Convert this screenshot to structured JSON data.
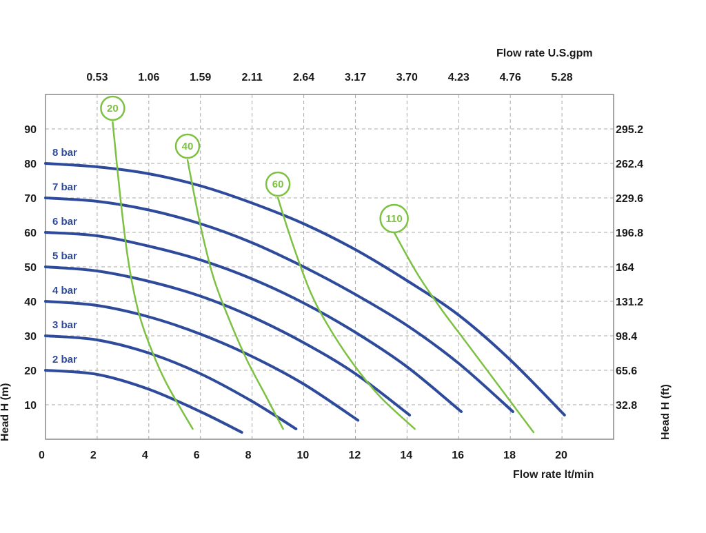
{
  "chart_data": {
    "type": "line",
    "xlabel": "Flow rate  lt/min",
    "x2label": "Flow rate U.S.gpm",
    "ylabel": "Head H (m)",
    "y2label": "Head H (ft)",
    "xlim": [
      0,
      22
    ],
    "ylim": [
      0,
      100
    ],
    "x_ticks": [
      "0",
      "2",
      "4",
      "6",
      "8",
      "10",
      "12",
      "14",
      "16",
      "18",
      "20"
    ],
    "x_tick_values": [
      0,
      2,
      4,
      6,
      8,
      10,
      12,
      14,
      16,
      18,
      20
    ],
    "x2_ticks": [
      "0.53",
      "1.06",
      "1.59",
      "2.11",
      "2.64",
      "3.17",
      "3.70",
      "4.23",
      "4.76",
      "5.28"
    ],
    "x2_tick_values": [
      2,
      4,
      6,
      8,
      10,
      12,
      14,
      16,
      18,
      20
    ],
    "y_ticks": [
      "10",
      "20",
      "30",
      "40",
      "50",
      "60",
      "70",
      "80",
      "90"
    ],
    "y_tick_values": [
      10,
      20,
      30,
      40,
      50,
      60,
      70,
      80,
      90
    ],
    "y2_ticks": [
      "32.8",
      "65.6",
      "98.4",
      "131.2",
      "164",
      "196.8",
      "229.6",
      "262.4",
      "295.2"
    ],
    "y2_tick_values": [
      10,
      20,
      30,
      40,
      50,
      60,
      70,
      80,
      90
    ],
    "grid": true,
    "colors": {
      "pressure": "#2e4a9a",
      "speed": "#7cc142",
      "grid": "#a8a8a8",
      "frame": "#888888"
    },
    "pressure_series": [
      {
        "name": "2 bar",
        "x": [
          0,
          2,
          4,
          6,
          7.6
        ],
        "y": [
          20,
          18.8,
          14.5,
          8,
          2
        ]
      },
      {
        "name": "3 bar",
        "x": [
          0,
          2,
          4,
          6,
          8,
          9.7
        ],
        "y": [
          30,
          28.8,
          25,
          19,
          11,
          3
        ]
      },
      {
        "name": "4 bar",
        "x": [
          0,
          2,
          4,
          6,
          8,
          10,
          12.1
        ],
        "y": [
          40,
          38.8,
          35.5,
          30.5,
          24,
          16,
          5.5
        ]
      },
      {
        "name": "5 bar",
        "x": [
          0,
          2,
          4,
          6,
          8,
          10,
          12,
          14.1
        ],
        "y": [
          50,
          48.8,
          45.8,
          41.5,
          35.5,
          28,
          19,
          7
        ]
      },
      {
        "name": "6 bar",
        "x": [
          0,
          2,
          4,
          6,
          8,
          10,
          12,
          14,
          16.1
        ],
        "y": [
          60,
          59,
          56,
          52,
          46.5,
          39.5,
          31,
          21,
          8
        ]
      },
      {
        "name": "7 bar",
        "x": [
          0,
          2,
          4,
          6,
          8,
          10,
          12,
          14,
          16,
          18.1
        ],
        "y": [
          70,
          69,
          66.5,
          62.5,
          57,
          50,
          42,
          33,
          22,
          8
        ]
      },
      {
        "name": "8 bar",
        "x": [
          0,
          2,
          4,
          6,
          8,
          10,
          12,
          14,
          16,
          18,
          20.1
        ],
        "y": [
          80,
          79,
          77,
          73.5,
          68.5,
          62.5,
          55,
          46,
          36,
          23,
          7
        ]
      }
    ],
    "speed_series": [
      {
        "name": "20",
        "x": [
          2.6,
          2.9,
          3.2,
          3.6,
          4.1,
          4.7,
          5.7
        ],
        "y": [
          92,
          70,
          52,
          37,
          26,
          16,
          3
        ]
      },
      {
        "name": "40",
        "x": [
          5.5,
          6.0,
          6.5,
          7.1,
          7.8,
          8.5,
          9.2
        ],
        "y": [
          81,
          62,
          47,
          35,
          23,
          13,
          3
        ]
      },
      {
        "name": "60",
        "x": [
          9.0,
          9.6,
          10.3,
          11.1,
          12.0,
          13.0,
          14.3
        ],
        "y": [
          70,
          56,
          42,
          31,
          21,
          12,
          3
        ]
      },
      {
        "name": "110",
        "x": [
          13.5,
          14.4,
          15.3,
          16.2,
          17.1,
          18.0,
          18.9
        ],
        "y": [
          60,
          48,
          38,
          29,
          20,
          11,
          2
        ]
      }
    ]
  }
}
